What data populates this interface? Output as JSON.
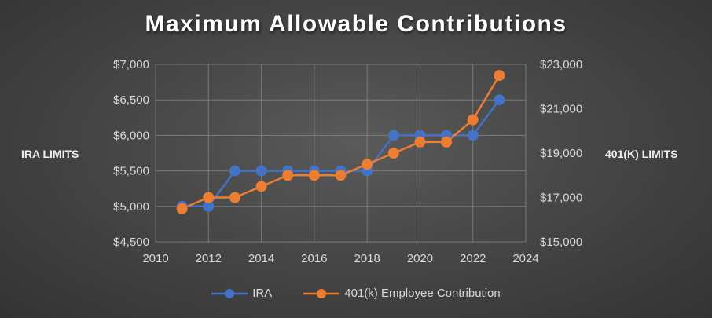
{
  "chart_data": {
    "type": "line",
    "title": "Maximum Allowable Contributions",
    "xlim": [
      2010,
      2024
    ],
    "x_ticks": [
      "2010",
      "2012",
      "2014",
      "2016",
      "2018",
      "2020",
      "2022",
      "2024"
    ],
    "y_left": {
      "label": "IRA LIMITS",
      "lim": [
        4500,
        7000
      ],
      "ticks": [
        "$4,500",
        "$5,000",
        "$5,500",
        "$6,000",
        "$6,500",
        "$7,000"
      ]
    },
    "y_right": {
      "label": "401(K) LIMITS",
      "lim": [
        15000,
        23000
      ],
      "ticks": [
        "$15,000",
        "$17,000",
        "$19,000",
        "$21,000",
        "$23,000"
      ]
    },
    "grid": true,
    "legend_position": "bottom",
    "series": [
      {
        "name": "IRA",
        "axis": "left",
        "color": "#4472C4",
        "x": [
          2011,
          2012,
          2013,
          2014,
          2015,
          2016,
          2017,
          2018,
          2019,
          2020,
          2021,
          2022,
          2023
        ],
        "y": [
          5000,
          5000,
          5500,
          5500,
          5500,
          5500,
          5500,
          5500,
          6000,
          6000,
          6000,
          6000,
          6500
        ]
      },
      {
        "name": "401(k) Employee Contribution",
        "axis": "right",
        "color": "#ED7D31",
        "x": [
          2011,
          2012,
          2013,
          2014,
          2015,
          2016,
          2017,
          2018,
          2019,
          2020,
          2021,
          2022,
          2023
        ],
        "y": [
          16500,
          17000,
          17000,
          17500,
          18000,
          18000,
          18000,
          18500,
          19000,
          19500,
          19500,
          20500,
          22500
        ]
      }
    ]
  }
}
